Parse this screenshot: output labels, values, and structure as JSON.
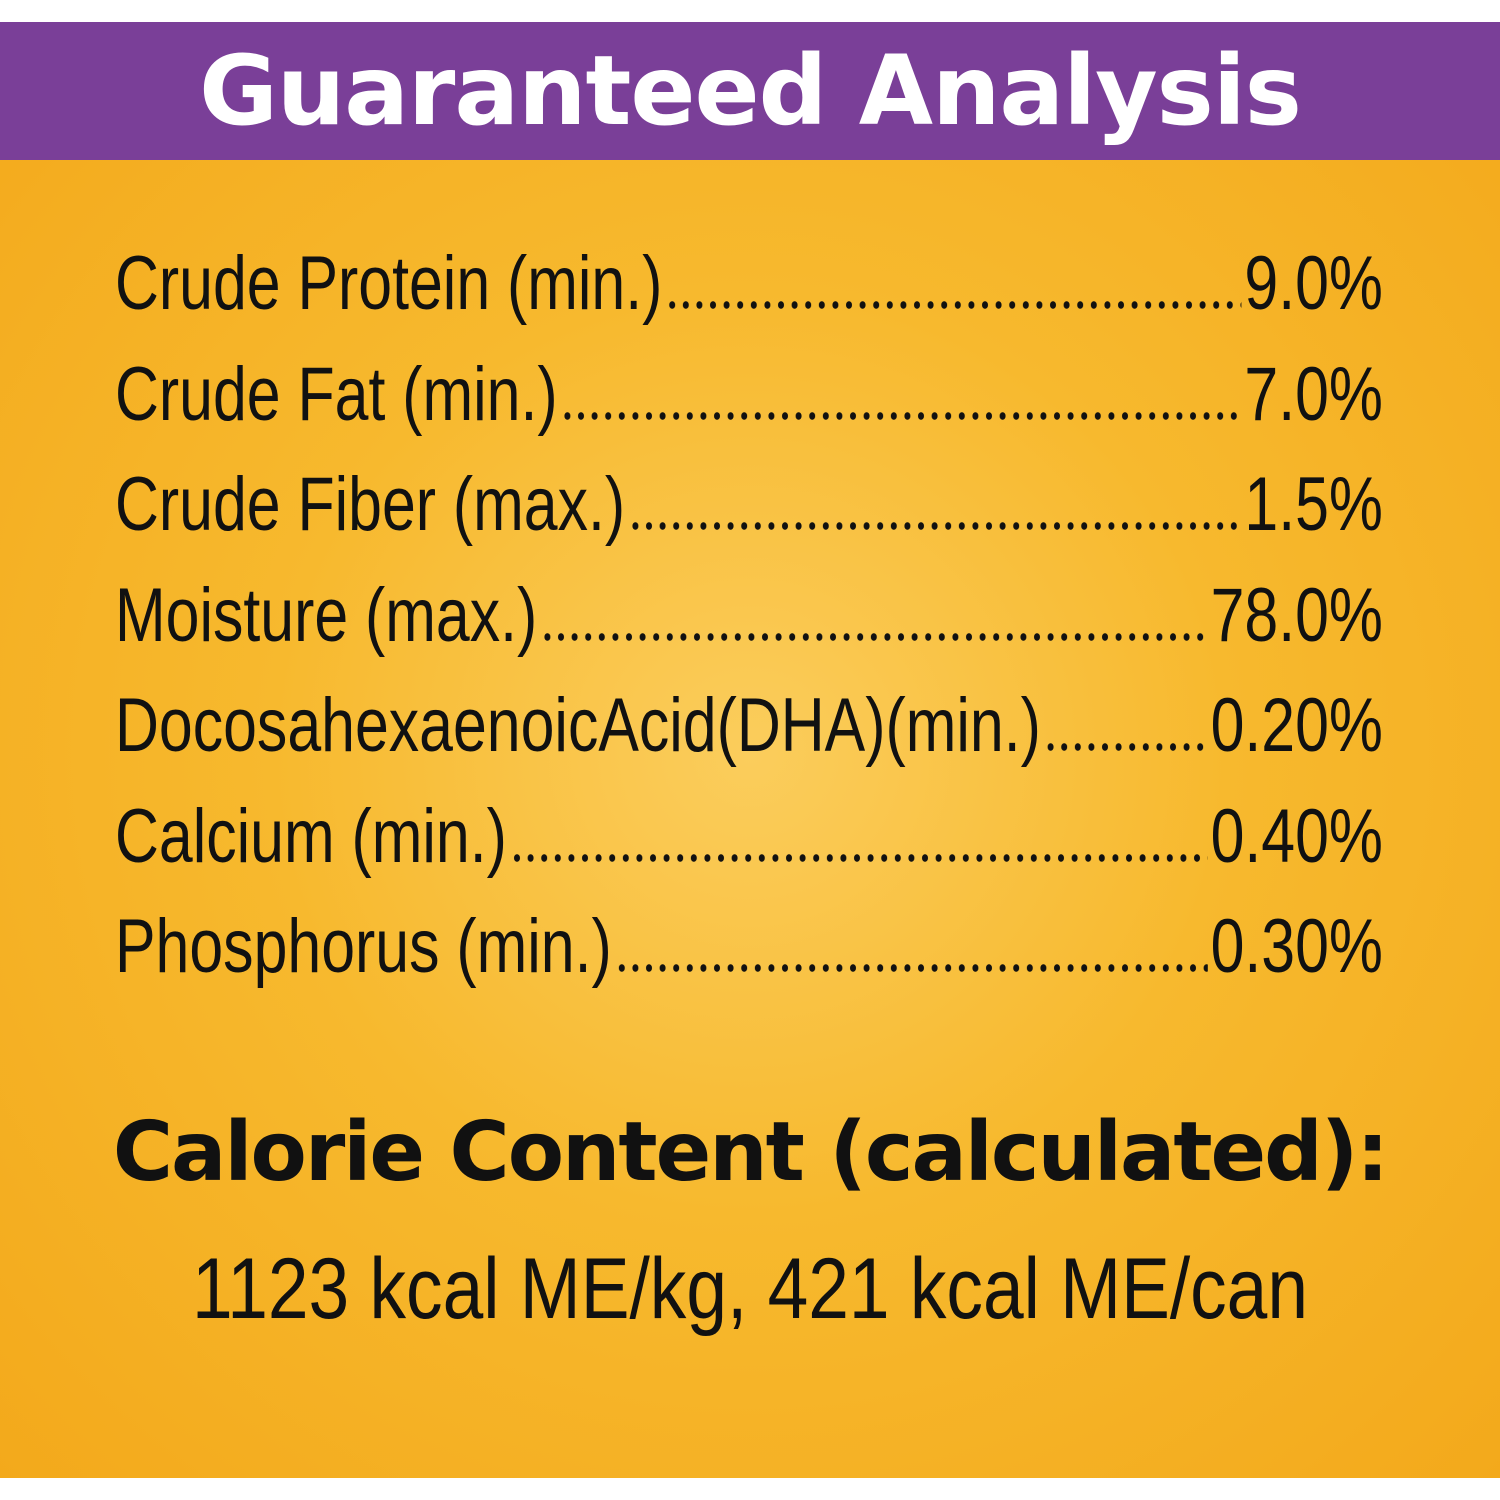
{
  "header": {
    "title": "Guaranteed Analysis"
  },
  "analysis": {
    "rows": [
      {
        "label": "Crude Protein (min.)",
        "value": "9.0%"
      },
      {
        "label": "Crude Fat (min.)",
        "value": "7.0%"
      },
      {
        "label": "Crude Fiber (max.)",
        "value": "1.5%"
      },
      {
        "label": "Moisture (max.)",
        "value": "78.0%"
      },
      {
        "label": "DocosahexaenoicAcid(DHA)(min.)",
        "value": "0.20%"
      },
      {
        "label": "Calcium (min.)",
        "value": "0.40%"
      },
      {
        "label": "Phosphorus (min.)",
        "value": "0.30%"
      }
    ]
  },
  "calorie": {
    "title": "Calorie Content (calculated):",
    "text": "1123 kcal ME/kg, 421 kcal ME/can"
  }
}
